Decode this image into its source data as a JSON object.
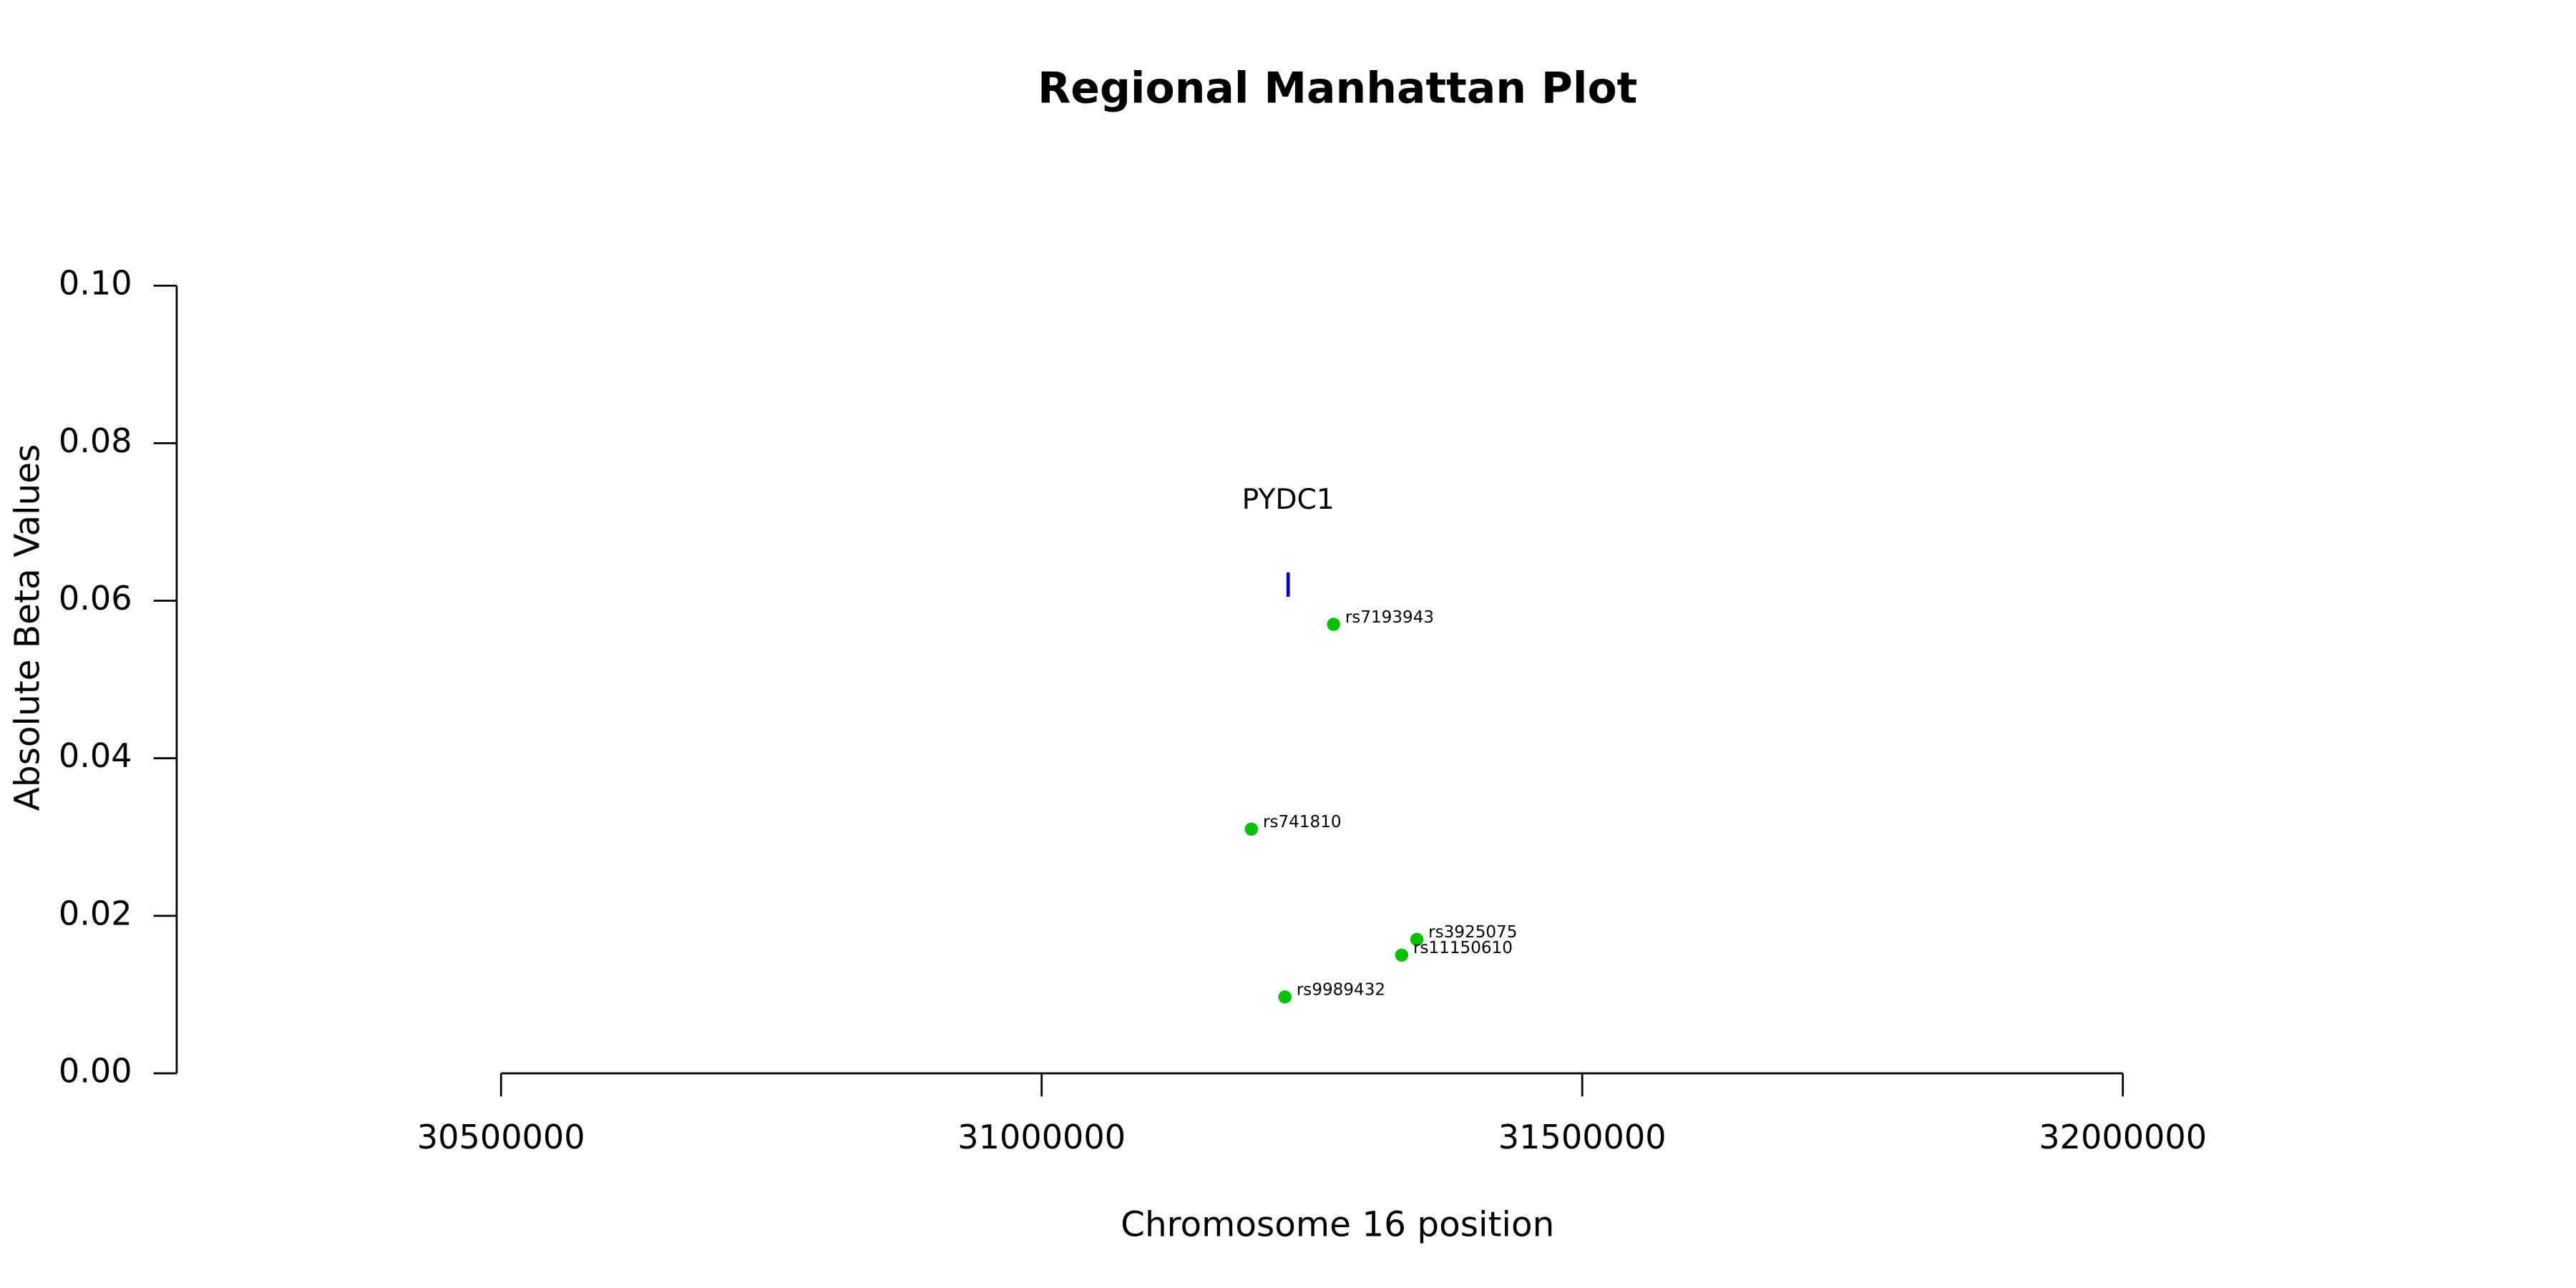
{
  "chart_data": {
    "type": "scatter",
    "title": "Regional Manhattan Plot",
    "x_label": "Chromosome 16 position",
    "y_label": "Absolute Beta Values",
    "xlim": [
      30200000,
      32300000
    ],
    "ylim": [
      0,
      0.1
    ],
    "xticks": [
      30500000,
      31000000,
      31500000,
      32000000
    ],
    "yticks": [
      {
        "value": 0,
        "label": "0.00"
      },
      {
        "value": 0.02,
        "label": "0.02"
      },
      {
        "value": 0.04,
        "label": "0.04"
      },
      {
        "value": 0.06,
        "label": "0.06"
      },
      {
        "value": 0.08,
        "label": "0.08"
      },
      {
        "value": 0.1,
        "label": "0.10"
      }
    ],
    "series": [
      {
        "color": "#00c000",
        "x": [
          31270000,
          31194000,
          31347000,
          31333000,
          31225000
        ],
        "values": [
          0.057,
          0.031,
          0.017,
          0.015,
          0.0097
        ],
        "point_labels": [
          "rs7193943",
          "rs741810",
          "rs3925075",
          "rs11150610",
          "rs9989432"
        ]
      }
    ],
    "genes": [
      {
        "name": "PYDC1",
        "x": 31228000,
        "ymin": 0.0605,
        "ymax": 0.0636,
        "color": "#0000cc"
      }
    ]
  }
}
